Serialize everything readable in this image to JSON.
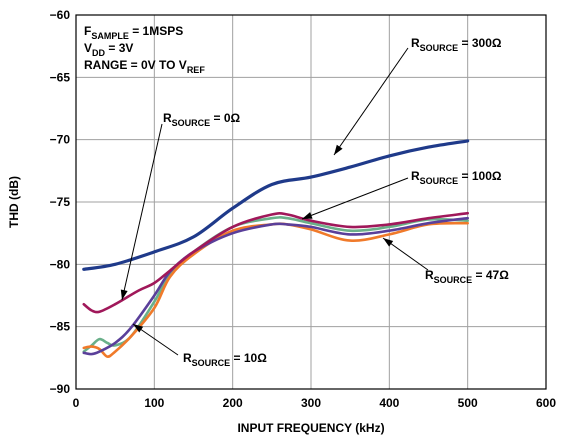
{
  "chart_data": {
    "type": "line",
    "title": "",
    "xlabel": "INPUT FREQUENCY (kHz)",
    "ylabel": "THD (dB)",
    "xlim": [
      0,
      600
    ],
    "ylim": [
      -90,
      -60
    ],
    "x_ticks": [
      "0",
      "100",
      "200",
      "300",
      "400",
      "500",
      "600"
    ],
    "y_ticks": [
      "−60",
      "−65",
      "−70",
      "−75",
      "−80",
      "−85",
      "−90"
    ],
    "grid": true,
    "conditions": [
      {
        "main": "F",
        "sub": "SAMPLE",
        "rest": " = 1MSPS"
      },
      {
        "main": "V",
        "sub": "DD",
        "rest": " = 3V"
      },
      {
        "main": "RANGE = 0V TO V",
        "sub": "REF",
        "rest": ""
      }
    ],
    "series": [
      {
        "name": "R SOURCE = 300Ω",
        "label_main": "R",
        "label_sub": "SOURCE",
        "label_rest": " = 300Ω",
        "color": "#1f3a8a",
        "x": [
          10,
          50,
          100,
          150,
          200,
          250,
          300,
          350,
          400,
          450,
          500
        ],
        "y": [
          -80.4,
          -80.0,
          -79.0,
          -77.8,
          -75.5,
          -73.6,
          -73.0,
          -72.2,
          -71.3,
          -70.6,
          -70.1
        ]
      },
      {
        "name": "R SOURCE = 100Ω",
        "label_main": "R",
        "label_sub": "SOURCE",
        "label_rest": " = 100Ω",
        "color": "#6ab08a",
        "x": [
          10,
          20,
          30,
          40,
          50,
          70,
          100,
          120,
          150,
          200,
          250,
          270,
          300,
          350,
          400,
          450,
          500
        ],
        "y": [
          -87.0,
          -86.5,
          -86.0,
          -86.3,
          -86.5,
          -85.8,
          -83.0,
          -80.8,
          -79.0,
          -77.0,
          -76.3,
          -76.3,
          -76.7,
          -77.3,
          -77.0,
          -76.4,
          -76.5
        ]
      },
      {
        "name": "R SOURCE = 47Ω",
        "label_main": "R",
        "label_sub": "SOURCE",
        "label_rest": " = 47Ω",
        "color": "#f07a2a",
        "x": [
          10,
          20,
          30,
          40,
          50,
          70,
          100,
          120,
          150,
          200,
          250,
          270,
          300,
          350,
          400,
          450,
          500
        ],
        "y": [
          -86.7,
          -86.6,
          -86.8,
          -87.4,
          -87.0,
          -85.8,
          -83.5,
          -81.0,
          -79.2,
          -77.3,
          -76.8,
          -76.8,
          -77.2,
          -78.1,
          -77.6,
          -76.8,
          -76.7
        ]
      },
      {
        "name": "R SOURCE = 10Ω",
        "label_main": "R",
        "label_sub": "SOURCE",
        "label_rest": " = 10Ω",
        "color": "#5a3f9a",
        "x": [
          10,
          20,
          30,
          50,
          70,
          100,
          120,
          150,
          200,
          250,
          270,
          300,
          350,
          400,
          450,
          500
        ],
        "y": [
          -87.1,
          -87.2,
          -87.0,
          -86.3,
          -85.1,
          -82.5,
          -80.6,
          -79.0,
          -77.5,
          -76.8,
          -76.8,
          -77.0,
          -77.6,
          -77.3,
          -76.7,
          -76.3
        ]
      },
      {
        "name": "R SOURCE = 0Ω",
        "label_main": "R",
        "label_sub": "SOURCE",
        "label_rest": " = 0Ω",
        "color": "#a0185a",
        "x": [
          10,
          20,
          30,
          50,
          80,
          100,
          120,
          150,
          200,
          250,
          270,
          300,
          350,
          400,
          450,
          500
        ],
        "y": [
          -83.2,
          -83.7,
          -83.8,
          -83.2,
          -82.1,
          -81.5,
          -80.5,
          -79.0,
          -77.0,
          -76.0,
          -76.0,
          -76.5,
          -77.0,
          -76.8,
          -76.3,
          -75.9
        ]
      }
    ]
  }
}
